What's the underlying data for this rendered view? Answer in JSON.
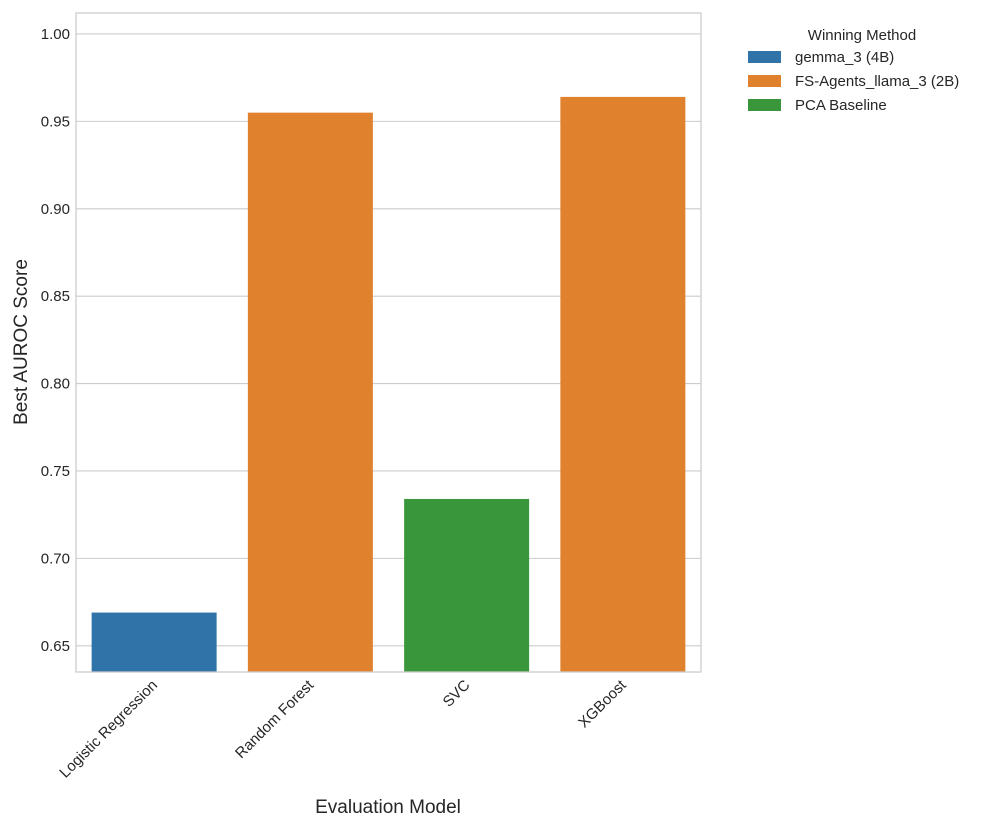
{
  "chart_data": {
    "type": "bar",
    "title": "",
    "xlabel": "Evaluation Model",
    "ylabel": "Best AUROC Score",
    "ylim": [
      0.635,
      1.012
    ],
    "yticks": [
      "0.65",
      "0.70",
      "0.75",
      "0.80",
      "0.85",
      "0.90",
      "0.95",
      "1.00"
    ],
    "categories": [
      "Logistic Regression",
      "Random Forest",
      "SVC",
      "XGBoost"
    ],
    "values": [
      0.669,
      0.955,
      0.734,
      0.964
    ],
    "bar_methods": [
      "gemma_3 (4B)",
      "FS-Agents_llama_3 (2B)",
      "PCA Baseline",
      "FS-Agents_llama_3 (2B)"
    ],
    "grid": true,
    "legend": {
      "title": "Winning Method",
      "placement": "outside-top-right",
      "entries": [
        {
          "label": "gemma_3 (4B)",
          "color": "#2f73a8"
        },
        {
          "label": "FS-Agents_llama_3 (2B)",
          "color": "#e0812e"
        },
        {
          "label": "PCA Baseline",
          "color": "#3a963a"
        }
      ]
    }
  }
}
